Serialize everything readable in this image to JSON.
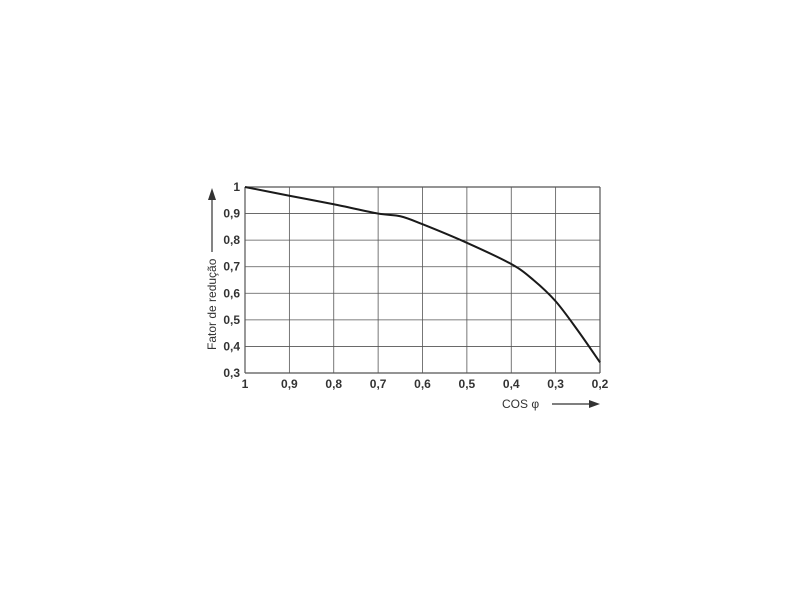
{
  "chart_data": {
    "type": "line",
    "xlabel": "COS φ",
    "ylabel": "Fator de redução",
    "xlim": [
      1,
      0.2
    ],
    "ylim": [
      0.3,
      1
    ],
    "x_reversed": true,
    "grid": true,
    "x_ticks": [
      "1",
      "0,9",
      "0,8",
      "0,7",
      "0,6",
      "0,5",
      "0,4",
      "0,3",
      "0,2"
    ],
    "x_tick_values": [
      1,
      0.9,
      0.8,
      0.7,
      0.6,
      0.5,
      0.4,
      0.3,
      0.2
    ],
    "y_ticks": [
      "0,3",
      "0,4",
      "0,5",
      "0,6",
      "0,7",
      "0,8",
      "0,9",
      "1"
    ],
    "y_tick_values": [
      0.3,
      0.4,
      0.5,
      0.6,
      0.7,
      0.8,
      0.9,
      1
    ],
    "series": [
      {
        "color": "#1a1a1a",
        "x": [
          1,
          0.9,
          0.8,
          0.7,
          0.65,
          0.6,
          0.5,
          0.4,
          0.35,
          0.3,
          0.25,
          0.2
        ],
        "y": [
          1,
          0.967,
          0.935,
          0.9,
          0.89,
          0.86,
          0.79,
          0.71,
          0.65,
          0.57,
          0.46,
          0.34
        ]
      }
    ]
  }
}
